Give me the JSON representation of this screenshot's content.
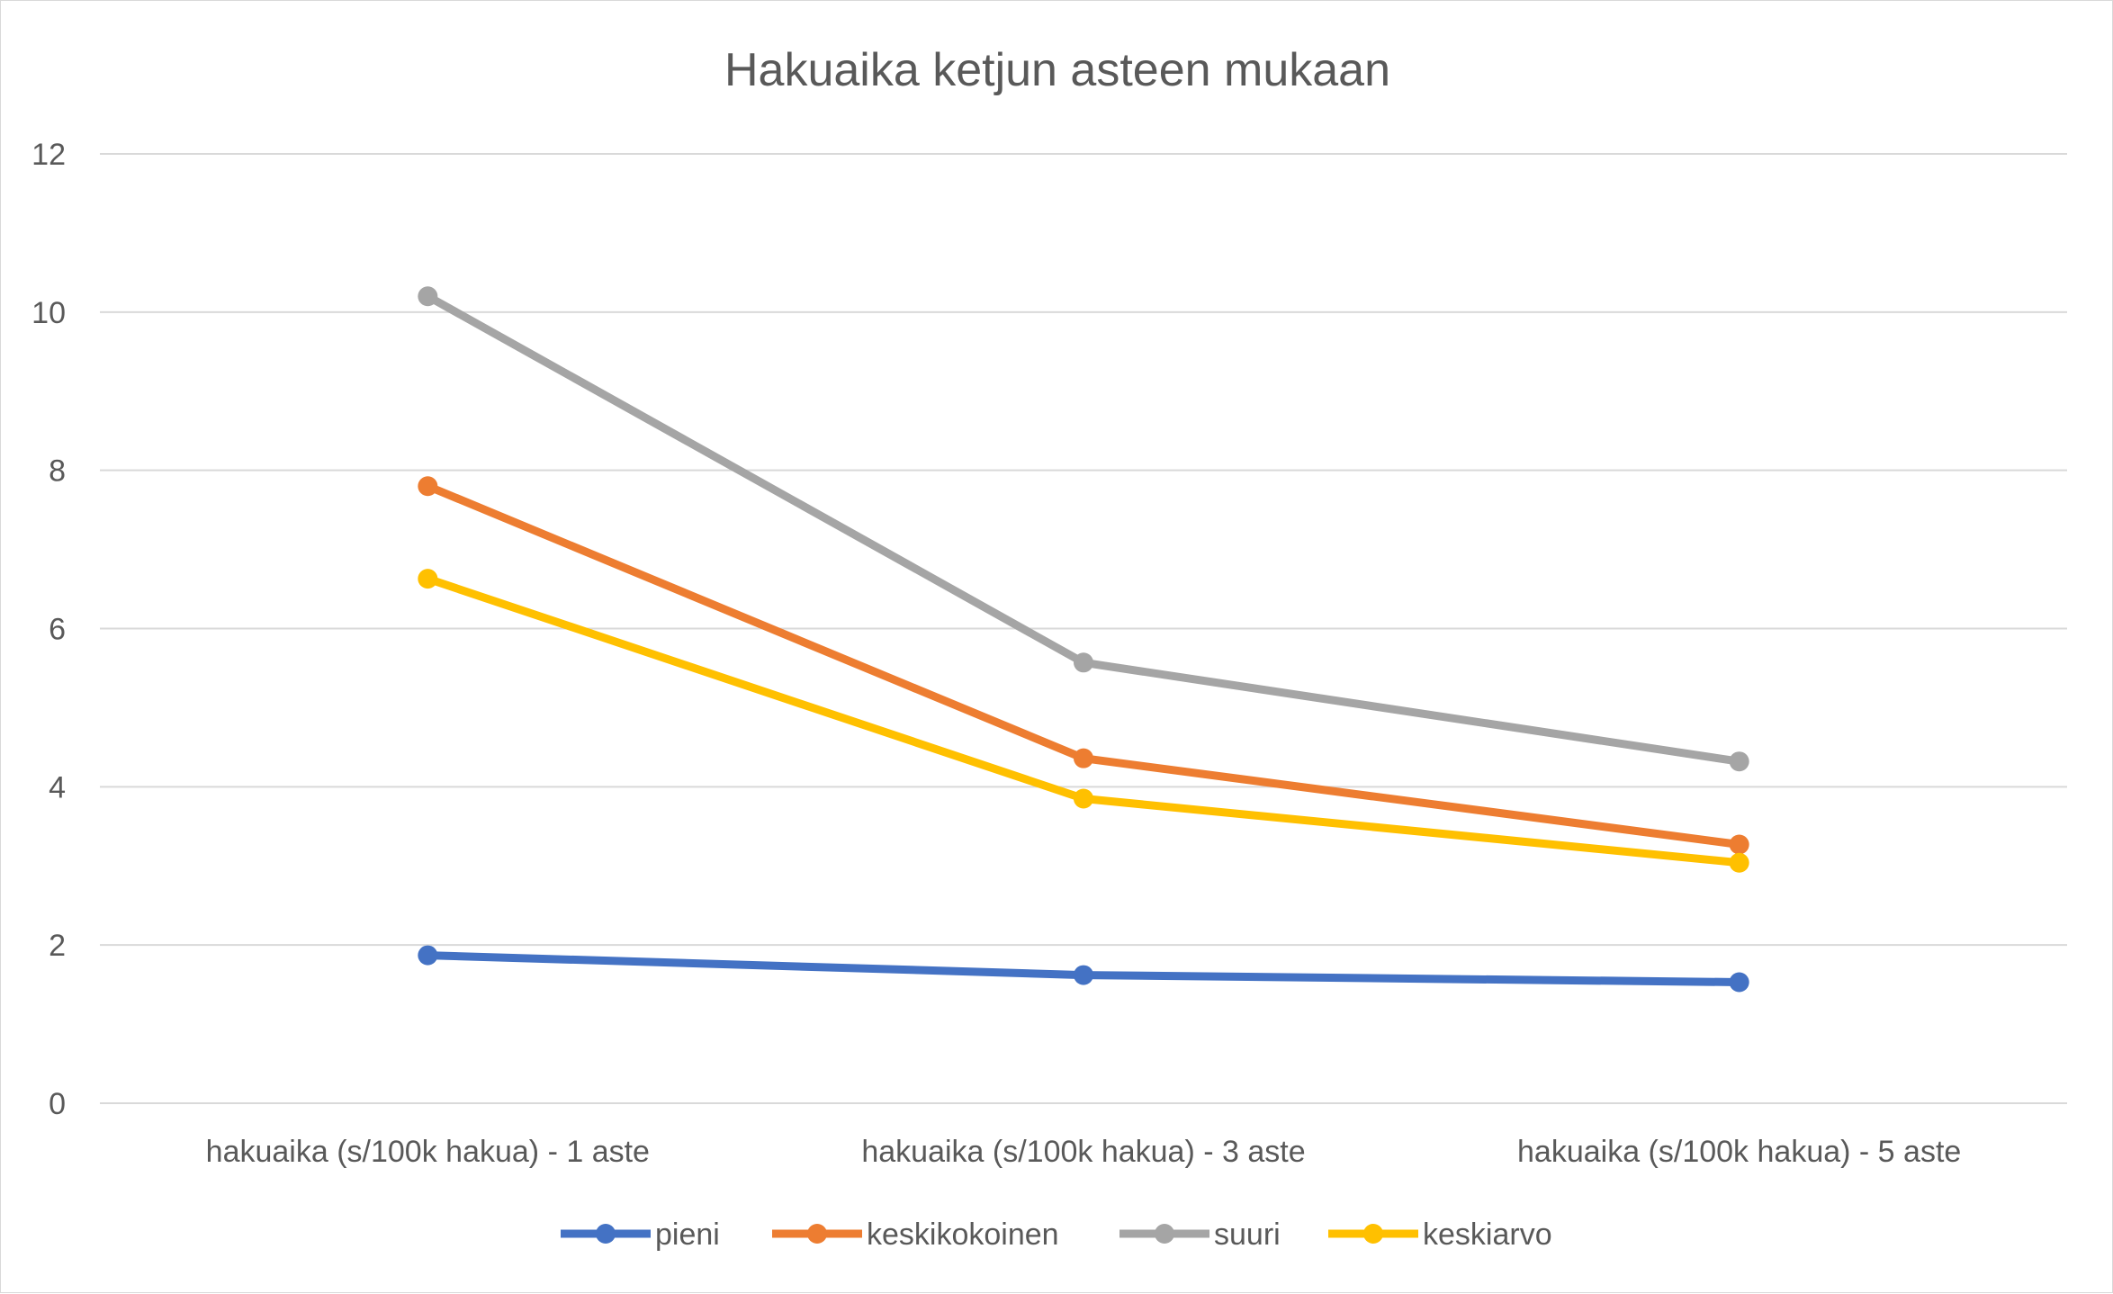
{
  "chart_data": {
    "type": "line",
    "title": "Hakuaika ketjun asteen mukaan",
    "xlabel": "",
    "ylabel": "",
    "categories": [
      "hakuaika (s/100k hakua) - 1 aste",
      "hakuaika (s/100k hakua) - 3 aste",
      "hakuaika (s/100k hakua) - 5 aste"
    ],
    "ylim": [
      0,
      12
    ],
    "yticks": [
      "0",
      "2",
      "4",
      "6",
      "8",
      "10",
      "12"
    ],
    "grid": true,
    "legend_position": "bottom",
    "series": [
      {
        "name": "pieni",
        "color": "#4472C4",
        "values": [
          1.87,
          1.62,
          1.53
        ]
      },
      {
        "name": "keskikokoinen",
        "color": "#ED7D31",
        "values": [
          7.8,
          4.36,
          3.27
        ]
      },
      {
        "name": "suuri",
        "color": "#A5A5A5",
        "values": [
          10.2,
          5.57,
          4.32
        ]
      },
      {
        "name": "keskiarvo",
        "color": "#FFC000",
        "values": [
          6.63,
          3.85,
          3.04
        ]
      }
    ]
  }
}
